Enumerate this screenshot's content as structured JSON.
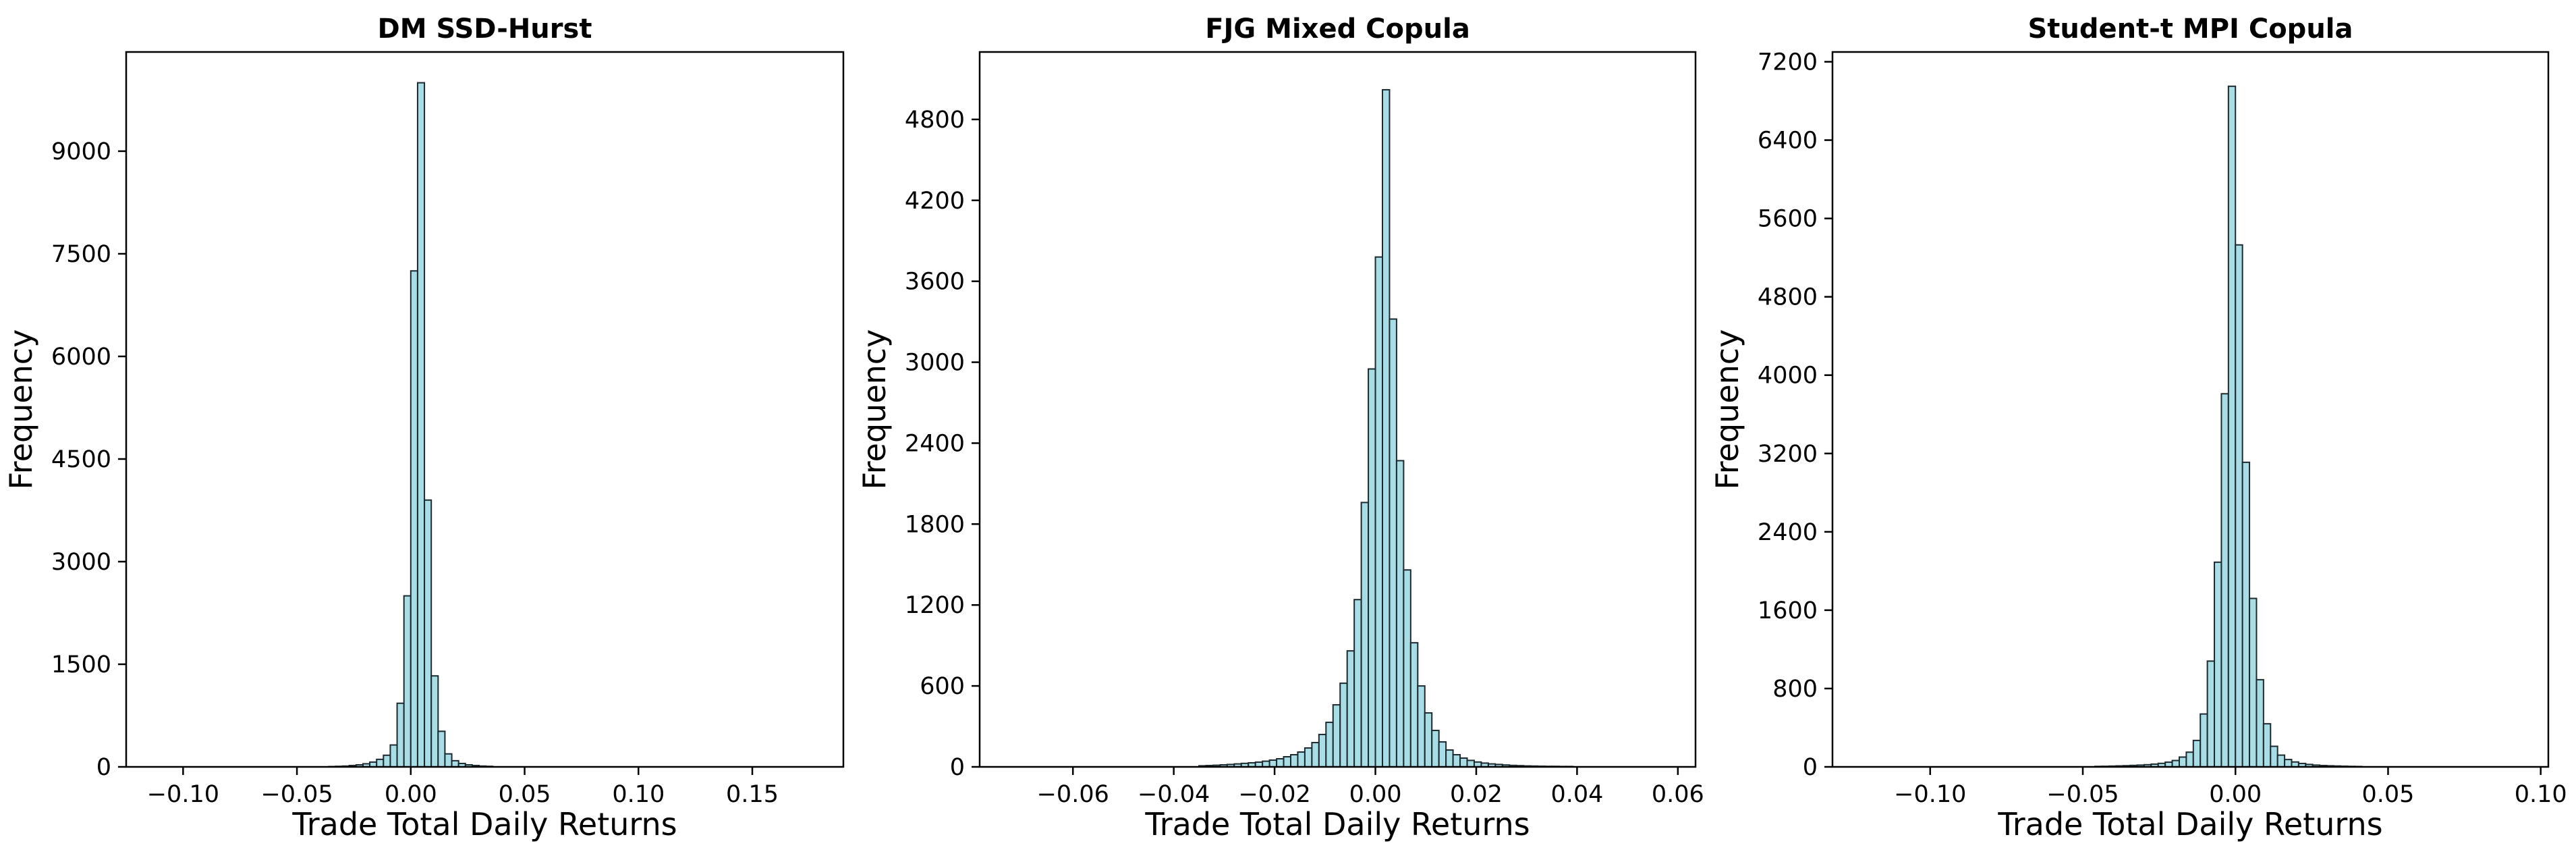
{
  "chart_data": [
    {
      "type": "bar",
      "title": "DM SSD-Hurst",
      "xlabel": "Trade Total Daily Returns",
      "ylabel": "Frequency",
      "xlim": [
        -0.125,
        0.19
      ],
      "ylim": [
        0,
        10450
      ],
      "xticks": [
        -0.1,
        -0.05,
        0.0,
        0.05,
        0.1,
        0.15
      ],
      "xtick_labels": [
        "−0.10",
        "−0.05",
        "0.00",
        "0.05",
        "0.10",
        "0.15"
      ],
      "yticks": [
        0,
        1500,
        3000,
        4500,
        6000,
        7500,
        9000
      ],
      "ytick_labels": [
        "0",
        "1500",
        "3000",
        "4500",
        "6000",
        "7500",
        "9000"
      ],
      "bin_width": 0.003,
      "bin_centers": [
        -0.0345,
        -0.0315,
        -0.0285,
        -0.0255,
        -0.0225,
        -0.0195,
        -0.0165,
        -0.0135,
        -0.0105,
        -0.0075,
        -0.0045,
        -0.0015,
        0.0015,
        0.0045,
        0.0075,
        0.0105,
        0.0135,
        0.0165,
        0.0195,
        0.0225,
        0.0255,
        0.0285,
        0.0315,
        0.0345
      ],
      "values": [
        5,
        8,
        12,
        20,
        30,
        45,
        70,
        110,
        170,
        320,
        930,
        2500,
        7250,
        10000,
        3900,
        1330,
        520,
        190,
        90,
        50,
        30,
        20,
        12,
        8
      ]
    },
    {
      "type": "bar",
      "title": "FJG Mixed Copula",
      "xlabel": "Trade Total Daily Returns",
      "ylabel": "Frequency",
      "xlim": [
        -0.0785,
        0.0635
      ],
      "ylim": [
        0,
        5300
      ],
      "xticks": [
        -0.06,
        -0.04,
        -0.02,
        0.0,
        0.02,
        0.04,
        0.06
      ],
      "xtick_labels": [
        "−0.06",
        "−0.04",
        "−0.02",
        "0.00",
        "0.02",
        "0.04",
        "0.06"
      ],
      "yticks": [
        0,
        600,
        1200,
        1800,
        2400,
        3000,
        3600,
        4200,
        4800
      ],
      "ytick_labels": [
        "0",
        "600",
        "1200",
        "1800",
        "2400",
        "3000",
        "3600",
        "4200",
        "4800"
      ],
      "bin_width": 0.0014,
      "bin_centers": [
        -0.0343,
        -0.0329,
        -0.0315,
        -0.0301,
        -0.0287,
        -0.0273,
        -0.0259,
        -0.0245,
        -0.0231,
        -0.0217,
        -0.0203,
        -0.0189,
        -0.0175,
        -0.0161,
        -0.0147,
        -0.0133,
        -0.0119,
        -0.0105,
        -0.0091,
        -0.0077,
        -0.0063,
        -0.0049,
        -0.0035,
        -0.0021,
        -0.0007,
        0.0007,
        0.0021,
        0.0035,
        0.0049,
        0.0063,
        0.0077,
        0.0091,
        0.0105,
        0.0119,
        0.0133,
        0.0147,
        0.0161,
        0.0175,
        0.0189,
        0.0203,
        0.0217,
        0.0231,
        0.0245,
        0.0259,
        0.0273,
        0.0287,
        0.0301,
        0.0315,
        0.0329,
        0.0343,
        0.0357,
        0.0371,
        0.0385
      ],
      "values": [
        8,
        10,
        12,
        15,
        18,
        22,
        26,
        30,
        35,
        42,
        50,
        60,
        75,
        90,
        110,
        140,
        180,
        240,
        330,
        460,
        620,
        860,
        1240,
        1960,
        2950,
        3780,
        5020,
        3320,
        2270,
        1460,
        920,
        600,
        400,
        270,
        185,
        125,
        90,
        65,
        48,
        36,
        28,
        22,
        18,
        14,
        11,
        9,
        7,
        6,
        5,
        4,
        4,
        3,
        3
      ]
    },
    {
      "type": "bar",
      "title": "Student-t MPI Copula",
      "xlabel": "Trade Total Daily Returns",
      "ylabel": "Frequency",
      "xlim": [
        -0.132,
        0.1025
      ],
      "ylim": [
        0,
        7300
      ],
      "xticks": [
        -0.1,
        -0.05,
        0.0,
        0.05,
        0.1
      ],
      "xtick_labels": [
        "−0.10",
        "−0.05",
        "0.00",
        "0.05",
        "0.10"
      ],
      "yticks": [
        0,
        800,
        1600,
        2400,
        3200,
        4000,
        4800,
        5600,
        6400,
        7200
      ],
      "ytick_labels": [
        "0",
        "800",
        "1600",
        "2400",
        "3200",
        "4000",
        "4800",
        "5600",
        "6400",
        "7200"
      ],
      "bin_width": 0.0023,
      "bin_centers": [
        -0.04485,
        -0.04255,
        -0.04025,
        -0.03795,
        -0.03565,
        -0.03335,
        -0.03105,
        -0.02875,
        -0.02645,
        -0.02415,
        -0.02185,
        -0.01955,
        -0.01725,
        -0.01495,
        -0.01265,
        -0.01035,
        -0.00805,
        -0.00575,
        -0.00345,
        -0.00115,
        0.00115,
        0.00345,
        0.00575,
        0.00805,
        0.01035,
        0.01265,
        0.01495,
        0.01725,
        0.01955,
        0.02185,
        0.02415,
        0.02645,
        0.02875,
        0.03105,
        0.03335,
        0.03565,
        0.03795,
        0.04025
      ],
      "values": [
        5,
        6,
        8,
        10,
        12,
        15,
        18,
        22,
        28,
        36,
        48,
        65,
        100,
        150,
        270,
        540,
        1080,
        2090,
        3810,
        6950,
        5330,
        3110,
        1720,
        890,
        440,
        210,
        120,
        75,
        50,
        35,
        25,
        18,
        14,
        11,
        9,
        7,
        5,
        4
      ]
    }
  ]
}
